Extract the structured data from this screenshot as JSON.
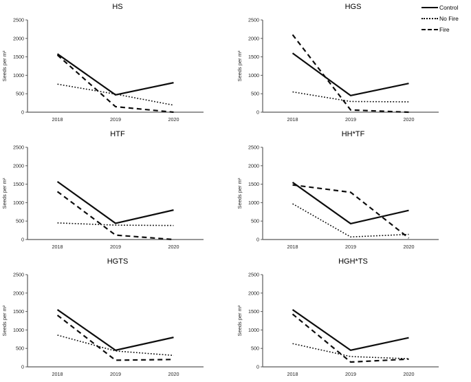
{
  "colors": {
    "line": "#0d0d0d",
    "axis": "#595959",
    "tick_text": "#262626"
  },
  "legend": {
    "items": [
      {
        "label": "Control",
        "style": "solid"
      },
      {
        "label": "No Fire",
        "style": "dotted"
      },
      {
        "label": "Fire",
        "style": "dashed"
      }
    ]
  },
  "chart_data": [
    {
      "type": "line",
      "title": "HS",
      "xlabel": "",
      "ylabel": "Seeds per m²",
      "x": [
        "2018",
        "2019",
        "2020"
      ],
      "ylim": [
        0,
        2500
      ],
      "yticks": [
        0,
        500,
        1000,
        1500,
        2000,
        2500
      ],
      "grid": false,
      "series": [
        {
          "name": "Control",
          "style": "solid",
          "values": [
            1580,
            470,
            800
          ]
        },
        {
          "name": "No Fire",
          "style": "dotted",
          "values": [
            760,
            490,
            190
          ]
        },
        {
          "name": "Fire",
          "style": "dashed",
          "values": [
            1550,
            150,
            0
          ]
        }
      ]
    },
    {
      "type": "line",
      "title": "HGS",
      "xlabel": "",
      "ylabel": "Seeds per m²",
      "x": [
        "2018",
        "2019",
        "2020"
      ],
      "ylim": [
        0,
        2500
      ],
      "yticks": [
        0,
        500,
        1000,
        1500,
        2000,
        2500
      ],
      "grid": false,
      "series": [
        {
          "name": "Control",
          "style": "solid",
          "values": [
            1600,
            450,
            780
          ]
        },
        {
          "name": "No Fire",
          "style": "dotted",
          "values": [
            550,
            290,
            280
          ]
        },
        {
          "name": "Fire",
          "style": "dashed",
          "values": [
            2100,
            60,
            0
          ]
        }
      ]
    },
    {
      "type": "line",
      "title": "HTF",
      "xlabel": "",
      "ylabel": "Seeds per m²",
      "x": [
        "2018",
        "2019",
        "2020"
      ],
      "ylim": [
        0,
        2500
      ],
      "yticks": [
        0,
        500,
        1000,
        1500,
        2000,
        2500
      ],
      "grid": false,
      "series": [
        {
          "name": "Control",
          "style": "solid",
          "values": [
            1570,
            440,
            800
          ]
        },
        {
          "name": "No Fire",
          "style": "dotted",
          "values": [
            450,
            390,
            380
          ]
        },
        {
          "name": "Fire",
          "style": "dashed",
          "values": [
            1300,
            120,
            0
          ]
        }
      ]
    },
    {
      "type": "line",
      "title": "HH*TF",
      "xlabel": "",
      "ylabel": "Seeds per m²",
      "x": [
        "2018",
        "2019",
        "2020"
      ],
      "ylim": [
        0,
        2500
      ],
      "yticks": [
        0,
        500,
        1000,
        1500,
        2000,
        2500
      ],
      "grid": false,
      "series": [
        {
          "name": "Control",
          "style": "solid",
          "values": [
            1550,
            430,
            790
          ]
        },
        {
          "name": "No Fire",
          "style": "dotted",
          "values": [
            970,
            70,
            140
          ]
        },
        {
          "name": "Fire",
          "style": "dashed",
          "values": [
            1480,
            1280,
            40
          ]
        }
      ]
    },
    {
      "type": "line",
      "title": "HGTS",
      "xlabel": "",
      "ylabel": "Seeds per m²",
      "x": [
        "2018",
        "2019",
        "2020"
      ],
      "ylim": [
        0,
        2500
      ],
      "yticks": [
        0,
        500,
        1000,
        1500,
        2000,
        2500
      ],
      "grid": false,
      "series": [
        {
          "name": "Control",
          "style": "solid",
          "values": [
            1550,
            450,
            800
          ]
        },
        {
          "name": "No Fire",
          "style": "dotted",
          "values": [
            860,
            430,
            310
          ]
        },
        {
          "name": "Fire",
          "style": "dashed",
          "values": [
            1400,
            180,
            200
          ]
        }
      ]
    },
    {
      "type": "line",
      "title": "HGH*TS",
      "xlabel": "",
      "ylabel": "Seeds per m²",
      "x": [
        "2018",
        "2019",
        "2020"
      ],
      "ylim": [
        0,
        2500
      ],
      "yticks": [
        0,
        500,
        1000,
        1500,
        2000,
        2500
      ],
      "grid": false,
      "series": [
        {
          "name": "Control",
          "style": "solid",
          "values": [
            1550,
            450,
            790
          ]
        },
        {
          "name": "No Fire",
          "style": "dotted",
          "values": [
            630,
            280,
            220
          ]
        },
        {
          "name": "Fire",
          "style": "dashed",
          "values": [
            1430,
            130,
            210
          ]
        }
      ]
    }
  ]
}
